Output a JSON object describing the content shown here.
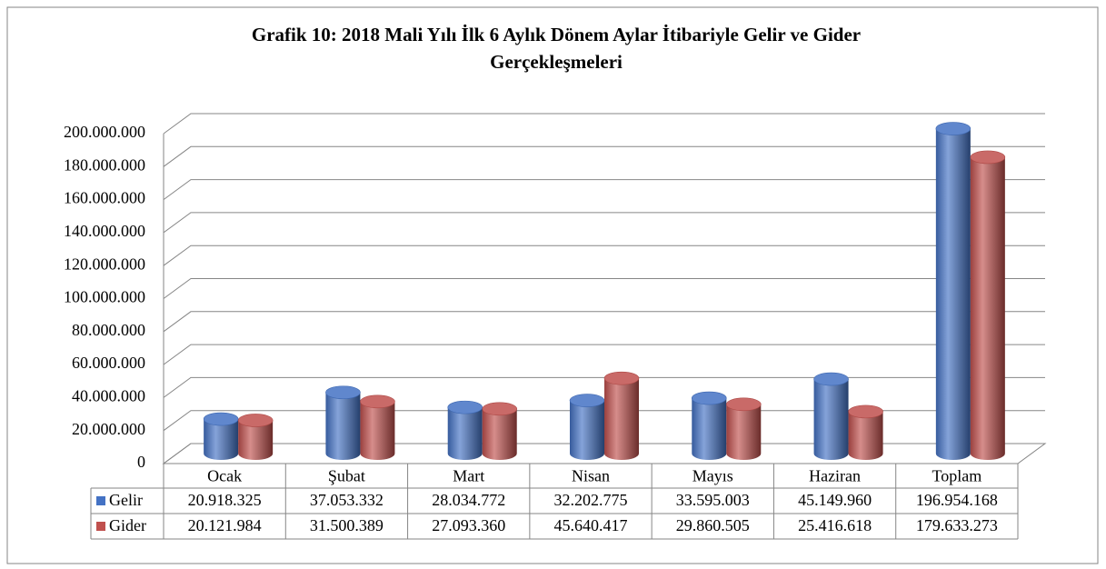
{
  "chart_data": {
    "type": "bar3d",
    "title": [
      "Grafik 10: 2018  Mali Yılı İlk 6 Aylık Dönem Aylar İtibariyle Gelir ve Gider",
      "Gerçekleşmeleri"
    ],
    "categories": [
      "Ocak",
      "Şubat",
      "Mart",
      "Nisan",
      "Mayıs",
      "Haziran",
      "Toplam"
    ],
    "series": [
      {
        "name": "Gelir",
        "color": "#4472c4",
        "values": [
          20918325,
          37053332,
          28034772,
          32202775,
          33595003,
          45149960,
          196954168
        ],
        "value_labels": [
          "20.918.325",
          "37.053.332",
          "28.034.772",
          "32.202.775",
          "33.595.003",
          "45.149.960",
          "196.954.168"
        ]
      },
      {
        "name": "Gider",
        "color": "#c0504d",
        "values": [
          20121984,
          31500389,
          27093360,
          45640417,
          29860505,
          25416618,
          179633273
        ],
        "value_labels": [
          "20.121.984",
          "31.500.389",
          "27.093.360",
          "45.640.417",
          "29.860.505",
          "25.416.618",
          "179.633.273"
        ]
      }
    ],
    "ylim": [
      0,
      200000000
    ],
    "yticks": [
      0,
      {
        "value": 20000000,
        "label": "20.000.000"
      },
      {
        "value": 40000000,
        "label": "40.000.000"
      },
      {
        "value": 60000000,
        "label": "60.000.000"
      },
      {
        "value": 80000000,
        "label": "80.000.000"
      },
      {
        "value": 100000000,
        "label": "100.000.000"
      },
      {
        "value": 120000000,
        "label": "120.000.000"
      },
      {
        "value": 140000000,
        "label": "140.000.000"
      },
      {
        "value": 160000000,
        "label": "160.000.000"
      },
      {
        "value": 180000000,
        "label": "180.000.000"
      },
      {
        "value": 200000000,
        "label": "200.000.000"
      }
    ],
    "grid": true
  }
}
